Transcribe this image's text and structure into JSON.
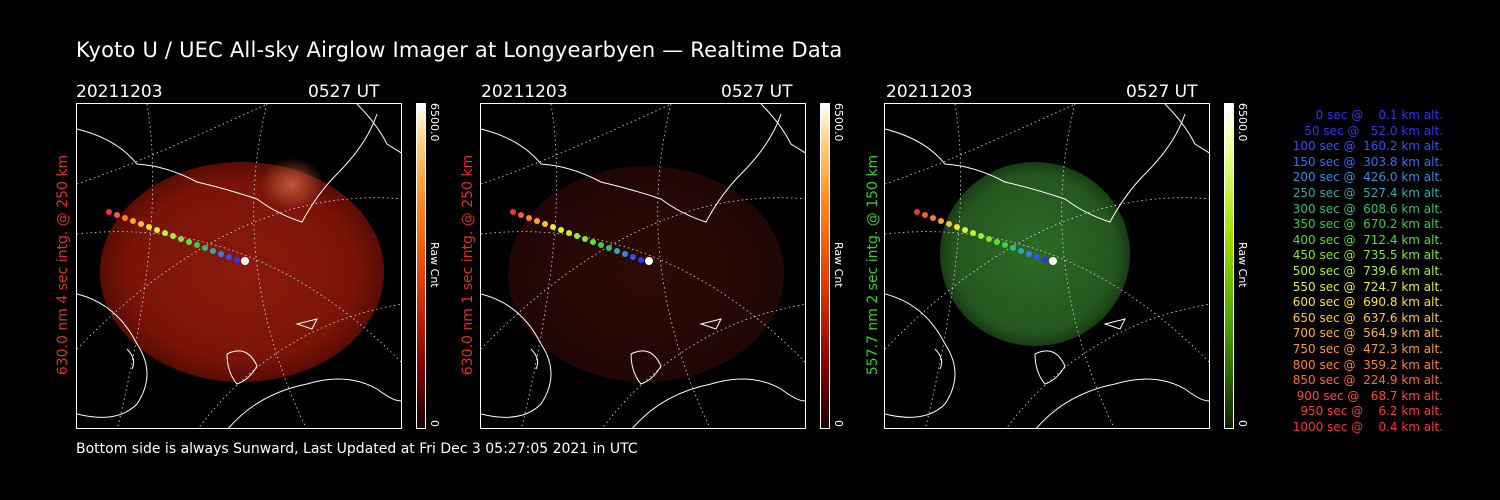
{
  "title": "Kyoto U / UEC All-sky Airglow Imager at Longyearbyen — Realtime Data",
  "footer": "Bottom side is always Sunward, Last Updated at Fri Dec  3 05:27:05 2021 in UTC",
  "panels": [
    {
      "date": "20211203",
      "time": "0527 UT",
      "ylabel": "630.0 nm 4 sec intg. @ 250 km",
      "label_color": "#e03020",
      "colorbar_max": "6500.0",
      "colorbar_min": "0",
      "colorbar_label": "Raw Cnt"
    },
    {
      "date": "20211203",
      "time": "0527 UT",
      "ylabel": "630.0 nm 1 sec intg. @ 250 km",
      "label_color": "#e03020",
      "colorbar_max": "6500.0",
      "colorbar_min": "0",
      "colorbar_label": "Raw Cnt"
    },
    {
      "date": "20211203",
      "time": "0527 UT",
      "ylabel": "557.7 nm 2 sec intg. @ 150 km",
      "label_color": "#30d030",
      "colorbar_max": "6500.0",
      "colorbar_min": "0",
      "colorbar_label": "Raw Cnt"
    }
  ],
  "legend": [
    {
      "text": "   0 sec @    0.1 km alt.",
      "color": "#3030ff"
    },
    {
      "text": "  50 sec @   52.0 km alt.",
      "color": "#3030ff"
    },
    {
      "text": " 100 sec @  160.2 km alt.",
      "color": "#3050ff"
    },
    {
      "text": " 150 sec @  303.8 km alt.",
      "color": "#3070ff"
    },
    {
      "text": " 200 sec @  426.0 km alt.",
      "color": "#3090e0"
    },
    {
      "text": " 250 sec @  527.4 km alt.",
      "color": "#30a8b0"
    },
    {
      "text": " 300 sec @  608.6 km alt.",
      "color": "#30c070"
    },
    {
      "text": " 350 sec @  670.2 km alt.",
      "color": "#30d040"
    },
    {
      "text": " 400 sec @  712.4 km alt.",
      "color": "#50e030"
    },
    {
      "text": " 450 sec @  735.5 km alt.",
      "color": "#80e830"
    },
    {
      "text": " 500 sec @  739.6 km alt.",
      "color": "#b0f030"
    },
    {
      "text": " 550 sec @  724.7 km alt.",
      "color": "#e0f030"
    },
    {
      "text": " 600 sec @  690.8 km alt.",
      "color": "#ffe030"
    },
    {
      "text": " 650 sec @  637.6 km alt.",
      "color": "#ffc830"
    },
    {
      "text": " 700 sec @  564.9 km alt.",
      "color": "#ffb030"
    },
    {
      "text": " 750 sec @  472.3 km alt.",
      "color": "#ff9830"
    },
    {
      "text": " 800 sec @  359.2 km alt.",
      "color": "#ff8030"
    },
    {
      "text": " 850 sec @  224.9 km alt.",
      "color": "#ff6830"
    },
    {
      "text": " 900 sec @   68.7 km alt.",
      "color": "#ff4a30"
    },
    {
      "text": " 950 sec @    6.2 km alt.",
      "color": "#ff3a30"
    },
    {
      "text": "1000 sec @    0.4 km alt.",
      "color": "#ff3030"
    }
  ]
}
